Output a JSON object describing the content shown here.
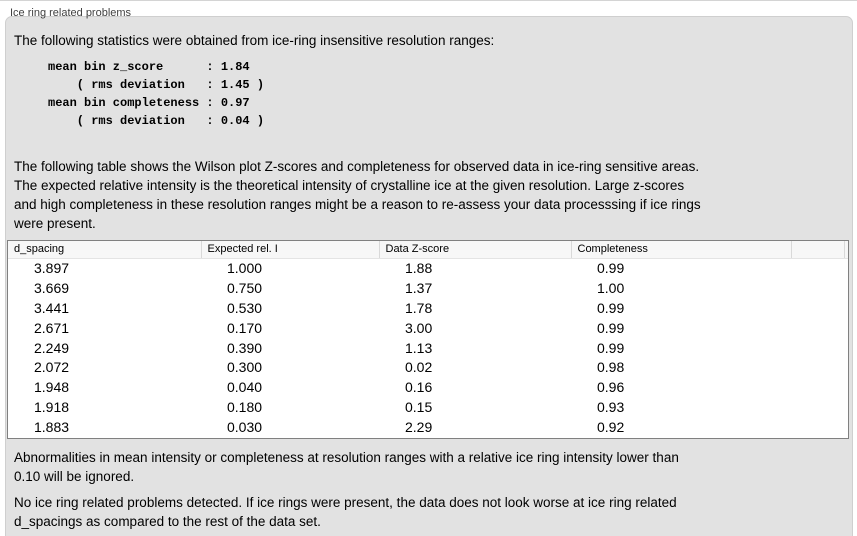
{
  "window": {
    "title": "Ice ring related problems"
  },
  "panel": {
    "intro": "The following statistics were obtained from ice-ring insensitive resolution ranges:",
    "stats_block": "mean bin z_score      : 1.84\n    ( rms deviation   : 1.45 )\nmean bin completeness : 0.97\n    ( rms deviation   : 0.04 )",
    "table_note": "The following table shows the Wilson plot Z-scores and completeness for observed data in ice-ring sensitive areas.\nThe expected relative intensity is the theoretical intensity of crystalline ice at the given resolution. Large z-scores\nand high completeness in these resolution ranges might be a reason to re-assess your data processsing if ice rings\nwere present.",
    "ignore_note": "Abnormalities in mean intensity or completeness at resolution ranges with a relative ice ring intensity lower than\n0.10 will be ignored.",
    "conclusion": "No ice ring related problems detected. If ice rings were present, the data does not look worse at ice ring related\nd_spacings as compared to the rest of the data set."
  },
  "table": {
    "columns": [
      "d_spacing",
      "Expected rel. I",
      "Data Z-score",
      "Completeness"
    ],
    "rows": [
      [
        "3.897",
        "1.000",
        "1.88",
        "0.99"
      ],
      [
        "3.669",
        "0.750",
        "1.37",
        "1.00"
      ],
      [
        "3.441",
        "0.530",
        "1.78",
        "0.99"
      ],
      [
        "2.671",
        "0.170",
        "3.00",
        "0.99"
      ],
      [
        "2.249",
        "0.390",
        "1.13",
        "0.99"
      ],
      [
        "2.072",
        "0.300",
        "0.02",
        "0.98"
      ],
      [
        "1.948",
        "0.040",
        "0.16",
        "0.96"
      ],
      [
        "1.918",
        "0.180",
        "0.15",
        "0.93"
      ],
      [
        "1.883",
        "0.030",
        "2.29",
        "0.92"
      ]
    ]
  },
  "colors": {
    "panel_background": "#e2e2e2",
    "panel_border": "#cfcfcf",
    "table_border": "#808080",
    "header_separator": "#d9d9d9",
    "text": "#000000",
    "title_text": "#3f3f3f"
  }
}
